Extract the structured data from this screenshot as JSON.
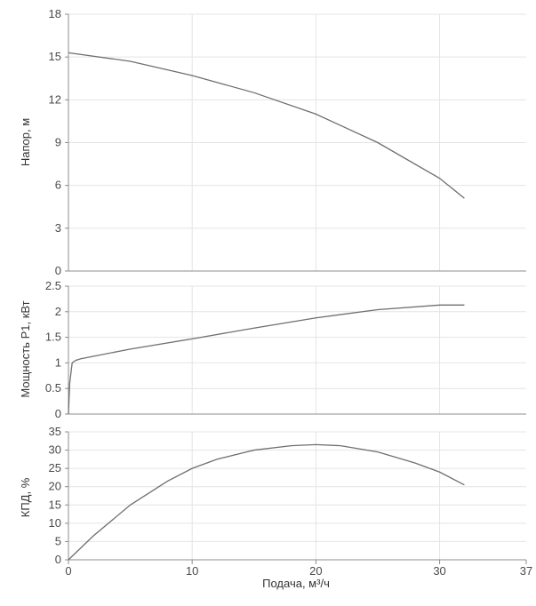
{
  "chart_data": [
    {
      "type": "line",
      "ylabel": "Напор, м",
      "ylim": [
        0,
        18
      ],
      "yticks": [
        "0",
        "3",
        "6",
        "9",
        "12",
        "15",
        "18"
      ],
      "xlim": [
        0,
        37
      ],
      "grid": true,
      "series": [
        {
          "x": [
            0,
            5,
            10,
            15,
            20,
            25,
            30,
            32
          ],
          "y": [
            15.3,
            14.7,
            13.7,
            12.5,
            11.0,
            9.0,
            6.5,
            5.1
          ]
        }
      ]
    },
    {
      "type": "line",
      "ylabel": "Мощность P1, кВт",
      "ylim": [
        0,
        2.5
      ],
      "yticks": [
        "0",
        "0.5",
        "1",
        "1.5",
        "2",
        "2.5"
      ],
      "xlim": [
        0,
        37
      ],
      "grid": true,
      "series": [
        {
          "x": [
            0,
            0.1,
            0.3,
            0.6,
            1,
            5,
            10,
            15,
            20,
            25,
            30,
            32
          ],
          "y": [
            0,
            0.6,
            1.0,
            1.05,
            1.08,
            1.27,
            1.47,
            1.68,
            1.88,
            2.04,
            2.13,
            2.13
          ]
        }
      ]
    },
    {
      "type": "line",
      "ylabel": "КПД, %",
      "xlabel": "Подача, м³/ч",
      "ylim": [
        0,
        35
      ],
      "yticks": [
        "0",
        "5",
        "10",
        "15",
        "20",
        "25",
        "30",
        "35"
      ],
      "xlim": [
        0,
        37
      ],
      "xticks": [
        "0",
        "10",
        "20",
        "30",
        "37"
      ],
      "grid": true,
      "series": [
        {
          "x": [
            0,
            2,
            5,
            8,
            10,
            12,
            15,
            18,
            20,
            22,
            25,
            28,
            30,
            32
          ],
          "y": [
            0,
            6.5,
            15,
            21.5,
            25,
            27.5,
            30,
            31.2,
            31.5,
            31.2,
            29.5,
            26.5,
            24,
            20.5
          ]
        }
      ]
    }
  ]
}
